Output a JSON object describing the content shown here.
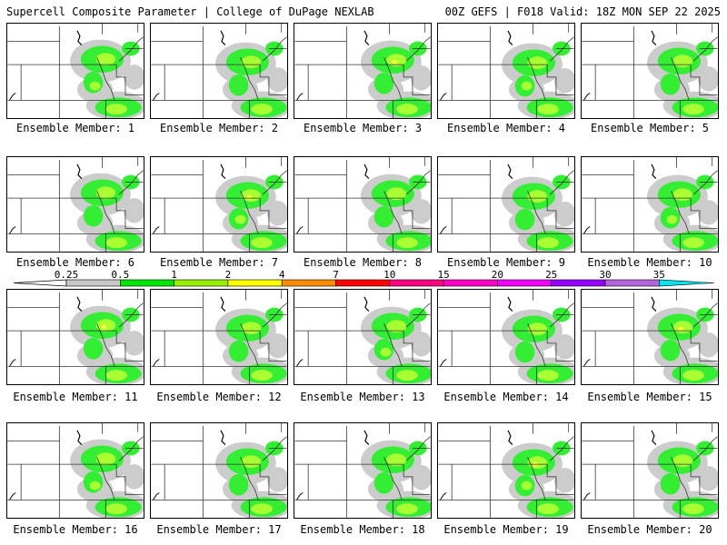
{
  "header": {
    "left_title": "Supercell Composite Parameter | College of DuPage NEXLAB",
    "right_title": "00Z GEFS | F018 Valid: 18Z MON SEP 22 2025"
  },
  "members": [
    {
      "label": "Ensemble Member: 1"
    },
    {
      "label": "Ensemble Member: 2"
    },
    {
      "label": "Ensemble Member: 3"
    },
    {
      "label": "Ensemble Member: 4"
    },
    {
      "label": "Ensemble Member: 5"
    },
    {
      "label": "Ensemble Member: 6"
    },
    {
      "label": "Ensemble Member: 7"
    },
    {
      "label": "Ensemble Member: 8"
    },
    {
      "label": "Ensemble Member: 9"
    },
    {
      "label": "Ensemble Member: 10"
    },
    {
      "label": "Ensemble Member: 11"
    },
    {
      "label": "Ensemble Member: 12"
    },
    {
      "label": "Ensemble Member: 13"
    },
    {
      "label": "Ensemble Member: 14"
    },
    {
      "label": "Ensemble Member: 15"
    },
    {
      "label": "Ensemble Member: 16"
    },
    {
      "label": "Ensemble Member: 17"
    },
    {
      "label": "Ensemble Member: 18"
    },
    {
      "label": "Ensemble Member: 19"
    },
    {
      "label": "Ensemble Member: 20"
    }
  ],
  "colorbar": {
    "ticks": [
      "0.25",
      "0.5",
      "1",
      "2",
      "4",
      "7",
      "10",
      "15",
      "20",
      "25",
      "30",
      "35"
    ],
    "colors": [
      "#c8c8c8",
      "#00e600",
      "#96f000",
      "#ffff00",
      "#ff8c00",
      "#ff0000",
      "#ff0080",
      "#ff00c8",
      "#f000ff",
      "#9600ff",
      "#b464dc",
      "#00e6f0"
    ]
  },
  "map_colors": {
    "gray": "#cccccc",
    "green": "#33ee33",
    "lime": "#aaff33",
    "yellow": "#ffff33"
  }
}
